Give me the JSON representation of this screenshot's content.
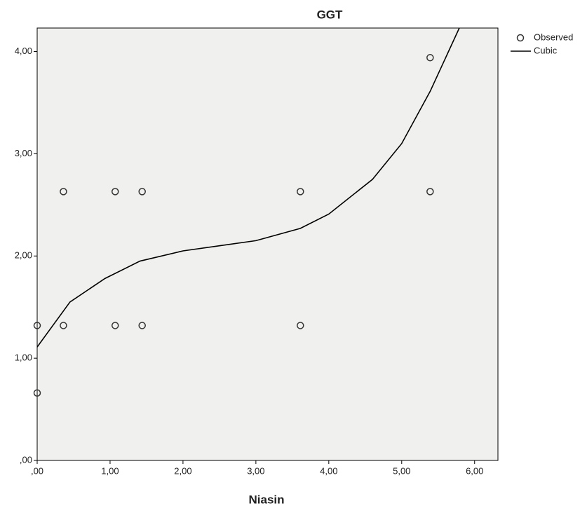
{
  "chart_data": {
    "type": "scatter",
    "title": "GGT",
    "x_label": "Niasin",
    "xlim": [
      0,
      6.32
    ],
    "ylim": [
      0,
      4.23
    ],
    "xticks": [
      {
        "value": 0,
        "label": ",00"
      },
      {
        "value": 1,
        "label": "1,00"
      },
      {
        "value": 2,
        "label": "2,00"
      },
      {
        "value": 3,
        "label": "3,00"
      },
      {
        "value": 4,
        "label": "4,00"
      },
      {
        "value": 5,
        "label": "5,00"
      },
      {
        "value": 6,
        "label": "6,00"
      }
    ],
    "yticks": [
      {
        "value": 0,
        "label": ",00"
      },
      {
        "value": 1,
        "label": "1,00"
      },
      {
        "value": 2,
        "label": "2,00"
      },
      {
        "value": 3,
        "label": "3,00"
      },
      {
        "value": 4,
        "label": "4,00"
      }
    ],
    "series": [
      {
        "name": "Observed",
        "type": "scatter",
        "color": "#333333",
        "x": [
          0,
          0,
          0.36,
          0.36,
          1.07,
          1.07,
          1.44,
          1.44,
          3.61,
          3.61,
          5.39,
          5.39
        ],
        "values": [
          1.32,
          0.66,
          2.63,
          1.32,
          2.63,
          1.32,
          2.63,
          1.32,
          2.63,
          1.32,
          3.94,
          2.63
        ]
      },
      {
        "name": "Cubic",
        "type": "line",
        "color": "#000000",
        "x": [
          0,
          0.45,
          0.93,
          1.41,
          2.0,
          2.5,
          3.0,
          3.61,
          4.0,
          4.6,
          5.0,
          5.39,
          5.79
        ],
        "values": [
          1.11,
          1.55,
          1.78,
          1.95,
          2.05,
          2.1,
          2.15,
          2.27,
          2.41,
          2.75,
          3.1,
          3.61,
          4.23
        ]
      }
    ]
  }
}
